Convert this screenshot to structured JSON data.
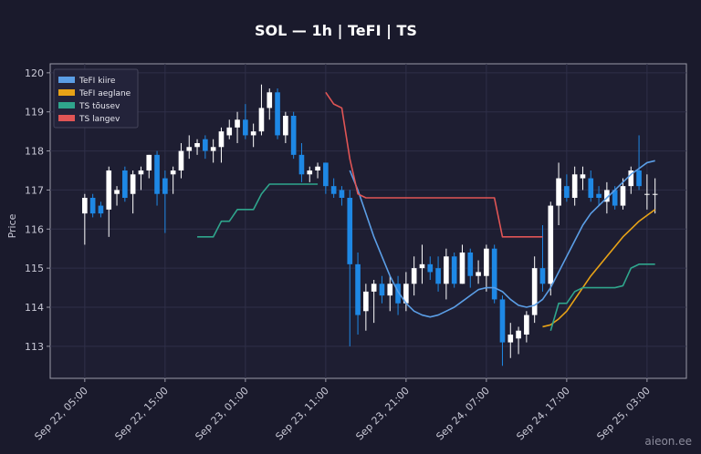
{
  "chart_data": {
    "type": "candlestick",
    "title": "SOL — 1h  |  TeFI  |  TS",
    "ylabel": "Price",
    "watermark": "aieon.ee",
    "x": [
      "Sep 22, 05:00",
      "Sep 22, 06:00",
      "Sep 22, 07:00",
      "Sep 22, 08:00",
      "Sep 22, 09:00",
      "Sep 22, 10:00",
      "Sep 22, 11:00",
      "Sep 22, 12:00",
      "Sep 22, 13:00",
      "Sep 22, 14:00",
      "Sep 22, 15:00",
      "Sep 22, 16:00",
      "Sep 22, 17:00",
      "Sep 22, 18:00",
      "Sep 22, 19:00",
      "Sep 22, 20:00",
      "Sep 22, 21:00",
      "Sep 22, 22:00",
      "Sep 22, 23:00",
      "Sep 23, 00:00",
      "Sep 23, 01:00",
      "Sep 23, 02:00",
      "Sep 23, 03:00",
      "Sep 23, 04:00",
      "Sep 23, 05:00",
      "Sep 23, 06:00",
      "Sep 23, 07:00",
      "Sep 23, 08:00",
      "Sep 23, 09:00",
      "Sep 23, 10:00",
      "Sep 23, 11:00",
      "Sep 23, 12:00",
      "Sep 23, 13:00",
      "Sep 23, 14:00",
      "Sep 23, 15:00",
      "Sep 23, 16:00",
      "Sep 23, 17:00",
      "Sep 23, 18:00",
      "Sep 23, 19:00",
      "Sep 23, 20:00",
      "Sep 23, 21:00",
      "Sep 23, 22:00",
      "Sep 23, 23:00",
      "Sep 24, 00:00",
      "Sep 24, 01:00",
      "Sep 24, 02:00",
      "Sep 24, 03:00",
      "Sep 24, 04:00",
      "Sep 24, 05:00",
      "Sep 24, 06:00",
      "Sep 24, 07:00",
      "Sep 24, 08:00",
      "Sep 24, 09:00",
      "Sep 24, 10:00",
      "Sep 24, 11:00",
      "Sep 24, 12:00",
      "Sep 24, 13:00",
      "Sep 24, 14:00",
      "Sep 24, 15:00",
      "Sep 24, 16:00",
      "Sep 24, 17:00",
      "Sep 24, 18:00",
      "Sep 24, 19:00",
      "Sep 24, 20:00",
      "Sep 24, 21:00",
      "Sep 24, 22:00",
      "Sep 24, 23:00",
      "Sep 25, 00:00",
      "Sep 25, 01:00",
      "Sep 25, 02:00",
      "Sep 25, 03:00",
      "Sep 25, 04:00"
    ],
    "open": [
      116.4,
      116.8,
      116.6,
      116.5,
      116.9,
      117.5,
      116.9,
      117.4,
      117.5,
      117.9,
      117.3,
      117.4,
      117.5,
      118.0,
      118.1,
      118.3,
      118.0,
      118.1,
      118.4,
      118.6,
      118.8,
      118.4,
      118.5,
      119.1,
      119.5,
      118.4,
      118.9,
      117.9,
      117.4,
      117.5,
      117.7,
      117.1,
      117.0,
      116.8,
      115.1,
      113.9,
      114.4,
      114.6,
      114.3,
      114.6,
      114.1,
      114.6,
      115.0,
      115.1,
      115.0,
      114.6,
      115.3,
      114.6,
      115.4,
      114.8,
      114.8,
      115.5,
      114.2,
      113.1,
      113.2,
      113.3,
      113.8,
      115.0,
      114.6,
      116.6,
      117.1,
      116.8,
      117.3,
      117.3,
      116.9,
      116.7,
      117.0,
      116.6,
      117.1,
      117.5,
      116.9,
      116.9
    ],
    "high": [
      116.9,
      116.9,
      116.7,
      117.6,
      117.1,
      117.6,
      117.5,
      117.6,
      117.9,
      118.0,
      117.5,
      117.6,
      118.2,
      118.4,
      118.3,
      118.4,
      118.3,
      118.6,
      118.8,
      119.0,
      119.2,
      118.7,
      119.7,
      119.6,
      119.6,
      119.0,
      119.0,
      118.2,
      117.6,
      117.7,
      117.7,
      117.3,
      117.1,
      117.0,
      115.4,
      114.6,
      114.7,
      114.8,
      114.8,
      114.8,
      114.9,
      115.3,
      115.6,
      115.3,
      115.3,
      115.5,
      115.4,
      115.6,
      115.5,
      115.2,
      115.6,
      115.6,
      114.3,
      113.6,
      113.5,
      113.9,
      115.3,
      116.1,
      116.7,
      117.7,
      117.4,
      117.6,
      117.6,
      117.5,
      117.1,
      117.2,
      117.1,
      117.3,
      117.6,
      118.4,
      117.4,
      117.3
    ],
    "low": [
      115.6,
      116.3,
      116.3,
      115.8,
      116.6,
      116.7,
      116.4,
      117.0,
      117.3,
      116.6,
      115.9,
      116.9,
      117.3,
      117.8,
      117.9,
      117.8,
      117.7,
      117.7,
      118.3,
      118.2,
      118.3,
      118.1,
      118.4,
      118.8,
      118.3,
      118.2,
      117.8,
      117.2,
      117.2,
      117.3,
      116.9,
      116.8,
      116.6,
      113.0,
      113.3,
      113.4,
      113.6,
      114.1,
      113.9,
      113.8,
      113.9,
      114.3,
      114.6,
      114.7,
      114.4,
      114.2,
      114.5,
      114.6,
      114.5,
      114.6,
      114.4,
      114.1,
      112.5,
      112.7,
      112.8,
      113.1,
      113.6,
      114.4,
      114.3,
      116.1,
      116.7,
      116.6,
      117.0,
      116.7,
      116.6,
      116.4,
      116.5,
      116.5,
      116.9,
      117.0,
      116.5,
      116.4
    ],
    "close": [
      116.8,
      116.4,
      116.4,
      117.5,
      117.0,
      116.8,
      117.4,
      117.5,
      117.9,
      116.9,
      116.9,
      117.5,
      118.0,
      118.1,
      118.2,
      118.0,
      118.1,
      118.5,
      118.6,
      118.8,
      118.4,
      118.5,
      119.1,
      119.5,
      118.4,
      118.9,
      117.9,
      117.4,
      117.5,
      117.6,
      117.1,
      116.9,
      116.8,
      115.1,
      113.8,
      114.4,
      114.6,
      114.3,
      114.6,
      114.1,
      114.6,
      115.0,
      115.1,
      114.9,
      114.6,
      115.3,
      114.6,
      115.4,
      114.8,
      114.9,
      115.5,
      114.2,
      113.1,
      113.3,
      113.4,
      113.8,
      115.0,
      114.6,
      116.6,
      117.3,
      116.8,
      117.4,
      117.4,
      116.8,
      116.8,
      117.0,
      116.6,
      117.1,
      117.5,
      117.1,
      116.9,
      116.9
    ],
    "up_color": "#ffffff",
    "down_color": "#1e88e5",
    "lines": [
      {
        "name": "TeFI kiire",
        "color": "#5b9ee6",
        "values": [
          null,
          null,
          null,
          null,
          null,
          null,
          null,
          null,
          null,
          null,
          null,
          null,
          null,
          null,
          null,
          null,
          null,
          null,
          null,
          null,
          null,
          null,
          null,
          null,
          null,
          null,
          null,
          null,
          null,
          null,
          null,
          null,
          null,
          117.5,
          117.0,
          116.4,
          115.8,
          115.3,
          114.8,
          114.4,
          114.1,
          113.9,
          113.8,
          113.75,
          113.8,
          113.9,
          114.0,
          114.15,
          114.3,
          114.45,
          114.5,
          114.5,
          114.4,
          114.2,
          114.05,
          114.0,
          114.05,
          114.2,
          114.5,
          114.9,
          115.3,
          115.7,
          116.1,
          116.4,
          116.6,
          116.8,
          117.0,
          117.2,
          117.4,
          117.55,
          117.7,
          117.75
        ]
      },
      {
        "name": "TeFI aeglane",
        "color": "#e8a317",
        "values": [
          null,
          null,
          null,
          null,
          null,
          null,
          null,
          null,
          null,
          null,
          null,
          null,
          null,
          null,
          null,
          null,
          null,
          null,
          null,
          null,
          null,
          null,
          null,
          null,
          null,
          null,
          null,
          null,
          null,
          null,
          null,
          null,
          null,
          null,
          null,
          null,
          null,
          null,
          null,
          null,
          null,
          null,
          null,
          null,
          null,
          null,
          null,
          null,
          null,
          null,
          null,
          null,
          null,
          null,
          null,
          null,
          null,
          113.5,
          113.55,
          113.7,
          113.9,
          114.2,
          114.5,
          114.8,
          115.05,
          115.3,
          115.55,
          115.8,
          116.0,
          116.2,
          116.35,
          116.5
        ]
      },
      {
        "name": "TS tõusev",
        "color": "#2fa58c",
        "values": [
          null,
          null,
          null,
          null,
          null,
          null,
          null,
          null,
          null,
          null,
          null,
          null,
          null,
          null,
          115.8,
          115.8,
          115.8,
          116.2,
          116.2,
          116.5,
          116.5,
          116.5,
          116.9,
          117.15,
          117.15,
          117.15,
          117.15,
          117.15,
          117.15,
          117.15,
          null,
          null,
          null,
          null,
          null,
          null,
          null,
          null,
          null,
          null,
          null,
          null,
          null,
          null,
          null,
          null,
          null,
          null,
          null,
          null,
          null,
          null,
          null,
          null,
          null,
          null,
          null,
          null,
          113.4,
          114.1,
          114.1,
          114.4,
          114.5,
          114.5,
          114.5,
          114.5,
          114.5,
          114.55,
          115.0,
          115.1,
          115.1,
          115.1
        ]
      },
      {
        "name": "TS langev",
        "color": "#e05555",
        "values": [
          null,
          null,
          null,
          null,
          null,
          null,
          null,
          null,
          null,
          null,
          null,
          null,
          null,
          null,
          null,
          null,
          null,
          null,
          null,
          null,
          null,
          null,
          null,
          null,
          null,
          null,
          null,
          null,
          null,
          null,
          119.5,
          119.2,
          119.1,
          117.8,
          116.9,
          116.8,
          116.8,
          116.8,
          116.8,
          116.8,
          116.8,
          116.8,
          116.8,
          116.8,
          116.8,
          116.8,
          116.8,
          116.8,
          116.8,
          116.8,
          116.8,
          116.8,
          115.8,
          115.8,
          115.8,
          115.8,
          115.8,
          115.8,
          null,
          null,
          null,
          null,
          null,
          null,
          null,
          null,
          null,
          null,
          null,
          null,
          null,
          null
        ]
      }
    ],
    "ylim": [
      112.18,
      120.23
    ],
    "yticks": [
      113,
      114,
      115,
      116,
      117,
      118,
      119,
      120
    ],
    "xticks": [
      "Sep 22, 05:00",
      "Sep 22, 15:00",
      "Sep 23, 01:00",
      "Sep 23, 11:00",
      "Sep 23, 21:00",
      "Sep 24, 07:00",
      "Sep 24, 17:00",
      "Sep 25, 03:00"
    ],
    "grid": true,
    "legend": "upper left"
  }
}
